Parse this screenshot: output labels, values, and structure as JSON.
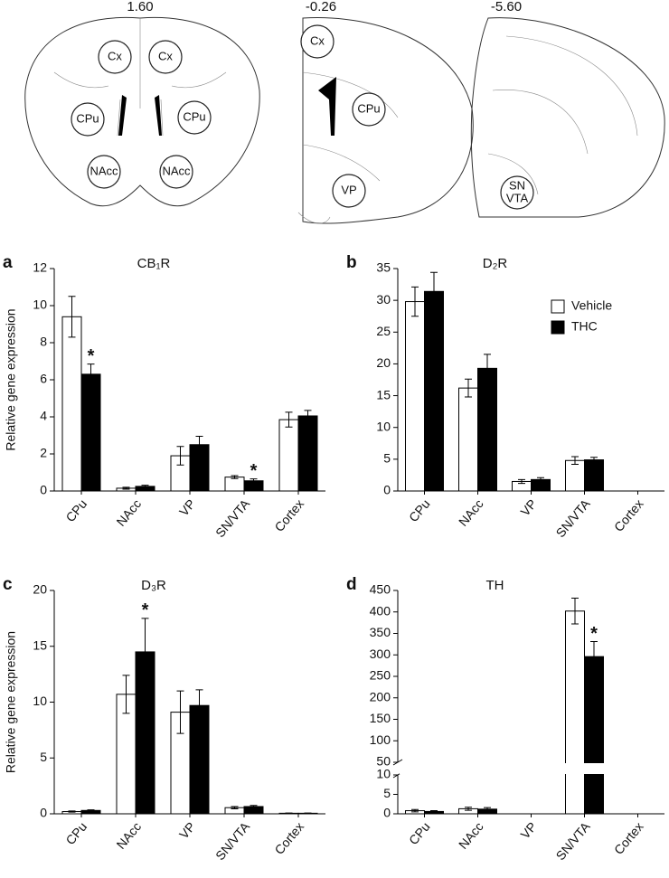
{
  "diagram": {
    "sections": [
      {
        "label": "1.60",
        "regions": [
          "Cx",
          "Cx",
          "CPu",
          "CPu",
          "NAcc",
          "NAcc"
        ]
      },
      {
        "label": "-0.26",
        "regions": [
          "Cx",
          "CPu",
          "VP"
        ]
      },
      {
        "label": "-5.60",
        "regions": [
          [
            "SN",
            "VTA"
          ]
        ]
      }
    ]
  },
  "chart_data": [
    {
      "type": "bar",
      "panel": "a",
      "title": "CB₁R",
      "ylabel": "Relative gene expression",
      "categories": [
        "CPu",
        "NAcc",
        "VP",
        "SN/VTA",
        "Cortex"
      ],
      "series": [
        {
          "color": "#ffffff",
          "values": [
            9.4,
            0.15,
            1.9,
            0.75,
            3.85
          ],
          "errors": [
            1.1,
            0.05,
            0.5,
            0.08,
            0.4
          ]
        },
        {
          "color": "#000000",
          "values": [
            6.3,
            0.25,
            2.5,
            0.55,
            4.05
          ],
          "errors": [
            0.55,
            0.06,
            0.45,
            0.1,
            0.3
          ],
          "significance": [
            "*",
            null,
            null,
            "*",
            null
          ]
        }
      ],
      "ylim": [
        0,
        12
      ],
      "yticks": [
        0,
        2,
        4,
        6,
        8,
        10,
        12
      ]
    },
    {
      "type": "bar",
      "panel": "b",
      "title": "D₂R",
      "categories": [
        "CPu",
        "NAcc",
        "VP",
        "SN/VTA",
        "Cortex"
      ],
      "series": [
        {
          "name": "Vehicle",
          "color": "#ffffff",
          "values": [
            29.8,
            16.2,
            1.5,
            4.8,
            null
          ],
          "errors": [
            2.3,
            1.4,
            0.3,
            0.6,
            null
          ]
        },
        {
          "name": "THC",
          "color": "#000000",
          "values": [
            31.4,
            19.3,
            1.8,
            4.9,
            null
          ],
          "errors": [
            3.0,
            2.2,
            0.3,
            0.4,
            null
          ]
        }
      ],
      "ylim": [
        0,
        35
      ],
      "yticks": [
        0,
        5,
        10,
        15,
        20,
        25,
        30,
        35
      ],
      "legend": "upper right"
    },
    {
      "type": "bar",
      "panel": "c",
      "title": "D₃R",
      "ylabel": "Relative gene expression",
      "categories": [
        "CPu",
        "NAcc",
        "VP",
        "SN/VTA",
        "Cortex"
      ],
      "series": [
        {
          "color": "#ffffff",
          "values": [
            0.2,
            10.7,
            9.1,
            0.55,
            0.05
          ],
          "errors": [
            0.05,
            1.7,
            1.9,
            0.1,
            0.02
          ]
        },
        {
          "color": "#000000",
          "values": [
            0.3,
            14.5,
            9.7,
            0.65,
            0.05
          ],
          "errors": [
            0.05,
            3.0,
            1.4,
            0.1,
            0.02
          ],
          "significance": [
            null,
            "*",
            null,
            null,
            null
          ]
        }
      ],
      "ylim": [
        0,
        20
      ],
      "yticks": [
        0,
        5,
        10,
        15,
        20
      ]
    },
    {
      "type": "bar",
      "panel": "d",
      "title": "TH",
      "categories": [
        "CPu",
        "NAcc",
        "VP",
        "SN/VTA",
        "Cortex"
      ],
      "series": [
        {
          "color": "#ffffff",
          "values": [
            0.8,
            1.3,
            null,
            402,
            null
          ],
          "errors": [
            0.3,
            0.4,
            null,
            30,
            null
          ]
        },
        {
          "color": "#000000",
          "values": [
            0.6,
            1.2,
            null,
            296,
            null
          ],
          "errors": [
            0.2,
            0.4,
            null,
            35,
            null
          ],
          "significance": [
            null,
            null,
            null,
            "*",
            null
          ]
        }
      ],
      "ylim": [
        0,
        450
      ],
      "axis_break": [
        10,
        50
      ],
      "yticks": [
        0,
        5,
        10,
        50,
        100,
        150,
        200,
        250,
        300,
        350,
        400,
        450
      ]
    }
  ]
}
